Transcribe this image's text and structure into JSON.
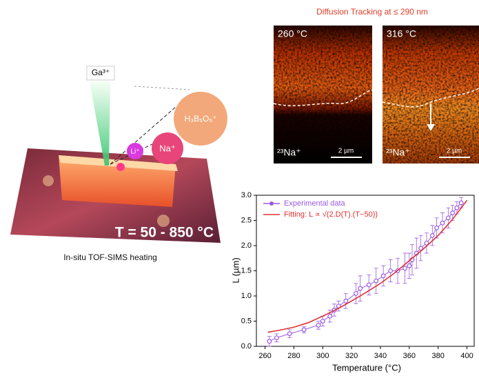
{
  "figure": {
    "left_caption": "In-situ TOF-SIMS heating",
    "beam_label": "Ga³⁺",
    "ion_li": "Li⁺",
    "ion_na": "Na⁺",
    "ion_boron": "H₃B₅O₅⁺",
    "temperature_range": "T = 50 - 850 °C",
    "maps_title": "Diffusion Tracking at ≤ 290 nm",
    "maps": [
      {
        "temperature": "260 °C",
        "ion": "²³Na⁺",
        "scale": "2 µm"
      },
      {
        "temperature": "316 °C",
        "ion": "²³Na⁺",
        "scale": "2 µm"
      }
    ]
  },
  "chart_data": {
    "type": "scatter",
    "x_label": "Temperature (°C)",
    "y_label": "L (µm)",
    "xlim": [
      254,
      405
    ],
    "ylim": [
      0,
      3
    ],
    "xticks": [
      260,
      280,
      300,
      320,
      340,
      360,
      380,
      400
    ],
    "yticks": [
      {
        "value": 0,
        "label": "0.0"
      },
      0.5,
      {
        "value": 1,
        "label": "1.0"
      },
      1.5,
      {
        "value": 2,
        "label": "2.0"
      },
      2.5,
      {
        "value": 3,
        "label": "3.0"
      }
    ],
    "legend": "upper left",
    "series": [
      {
        "name": "Experimental data",
        "color": "#9b59e6",
        "marker": "circle",
        "x": [
          263,
          268,
          277,
          287,
          297,
          300,
          305,
          308,
          311,
          316,
          323,
          326,
          332,
          337,
          342,
          347,
          352,
          357,
          360,
          362,
          365,
          368,
          372,
          376,
          379,
          383,
          387,
          390,
          393,
          396
        ],
        "values": [
          0.1,
          0.17,
          0.25,
          0.33,
          0.42,
          0.5,
          0.6,
          0.72,
          0.8,
          0.9,
          1.05,
          1.15,
          1.22,
          1.3,
          1.4,
          1.5,
          1.5,
          1.55,
          1.6,
          1.72,
          1.85,
          1.95,
          2.05,
          2.2,
          2.35,
          2.45,
          2.55,
          2.65,
          2.75,
          2.85
        ],
        "errors": [
          0.1,
          0.08,
          0.08,
          0.06,
          0.08,
          0.1,
          0.12,
          0.12,
          0.1,
          0.15,
          0.2,
          0.25,
          0.2,
          0.25,
          0.2,
          0.22,
          0.25,
          0.3,
          0.25,
          0.3,
          0.3,
          0.25,
          0.2,
          0.2,
          0.2,
          0.2,
          0.2,
          0.15,
          0.12,
          0.1
        ]
      },
      {
        "name": "Fitting: L ∝ √(2.D(T).(T−50))",
        "color": "#e03030",
        "marker": "line",
        "x": [
          262,
          270,
          280,
          290,
          300,
          310,
          320,
          330,
          340,
          350,
          360,
          370,
          380,
          390,
          400
        ],
        "values": [
          0.28,
          0.32,
          0.38,
          0.47,
          0.6,
          0.74,
          0.9,
          1.07,
          1.25,
          1.46,
          1.7,
          1.94,
          2.2,
          2.52,
          2.9
        ]
      }
    ]
  }
}
